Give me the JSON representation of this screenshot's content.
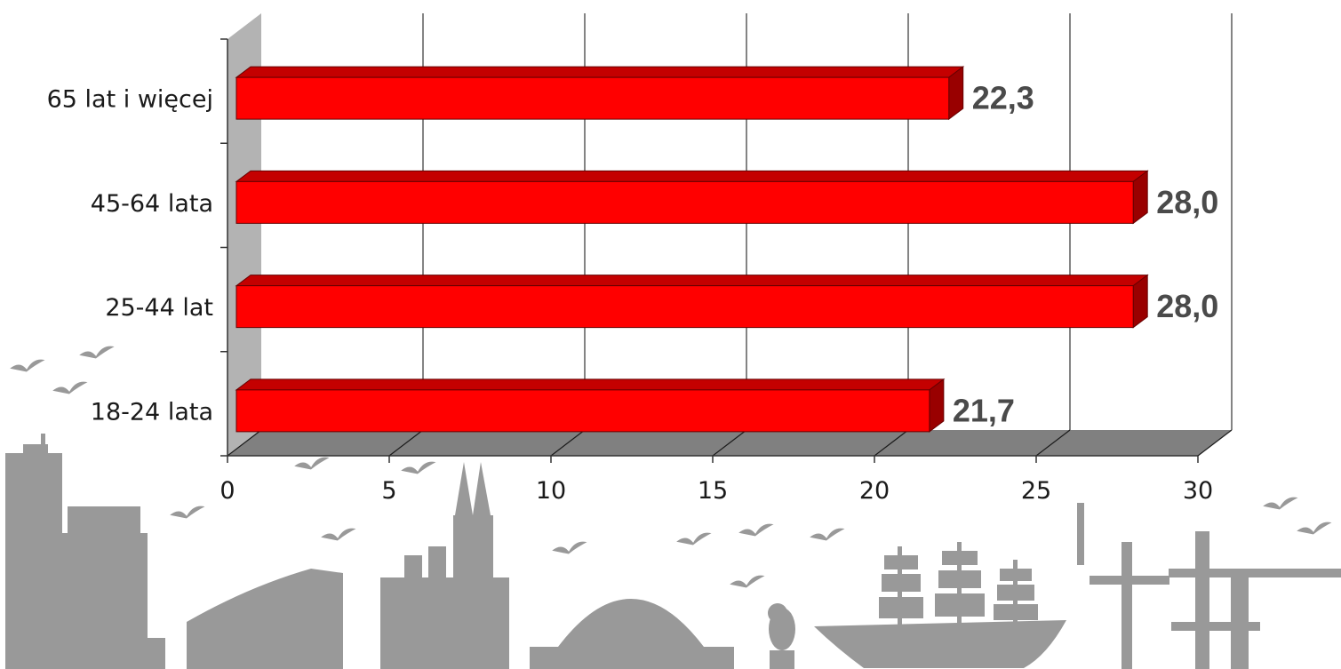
{
  "chart_data": {
    "type": "bar",
    "orientation": "horizontal",
    "style": "3d",
    "categories": [
      "65 lat i więcej",
      "45-64 lata",
      "25-44 lat",
      "18-24 lata"
    ],
    "values": [
      22.3,
      28.0,
      28.0,
      21.7
    ],
    "value_labels": [
      "22,3",
      "28,0",
      "28,0",
      "21,7"
    ],
    "x_ticks": [
      "0",
      "5",
      "10",
      "15",
      "20",
      "25",
      "30"
    ],
    "xlim": [
      0,
      30
    ],
    "grid": true,
    "legend": "none",
    "title": "",
    "xlabel": "",
    "ylabel": ""
  },
  "colors": {
    "bar_front": "#ff0000",
    "bar_top": "#c40000",
    "bar_side": "#990000",
    "wall": "#b3b3b3",
    "floor": "#808080",
    "value_text": "#4a4a4a",
    "silhouette": "#999999"
  },
  "decoration": {
    "background": "city-skyline-silhouette",
    "items": [
      "skyscraper-icon",
      "office-building-icon",
      "cathedral-icon",
      "arch-hall-icon",
      "statue-icon",
      "sailing-ship-icon",
      "port-crane-icon",
      "seagull-icon"
    ]
  }
}
